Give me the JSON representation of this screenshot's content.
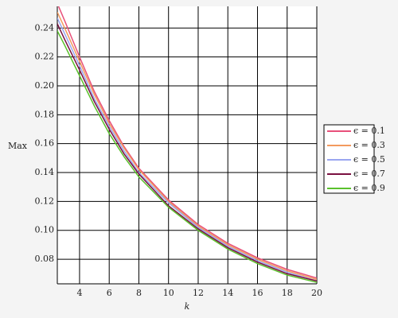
{
  "chart_data": {
    "type": "line",
    "x_label": "k",
    "y_label": "Max",
    "x": [
      2.5,
      3,
      4,
      5,
      6,
      7,
      8,
      10,
      12,
      14,
      16,
      18,
      20
    ],
    "series": [
      {
        "name": "ϵ = 0.1",
        "color": "#e8507a",
        "values": [
          0.257,
          0.245,
          0.22,
          0.196,
          0.176,
          0.158,
          0.143,
          0.121,
          0.104,
          0.091,
          0.081,
          0.073,
          0.067
        ]
      },
      {
        "name": "ϵ = 0.3",
        "color": "#f39a5e",
        "values": [
          0.251,
          0.24,
          0.217,
          0.194,
          0.174,
          0.157,
          0.142,
          0.12,
          0.103,
          0.09,
          0.08,
          0.072,
          0.066
        ]
      },
      {
        "name": "ϵ = 0.5",
        "color": "#9aa6f0",
        "values": [
          0.247,
          0.236,
          0.214,
          0.191,
          0.172,
          0.155,
          0.14,
          0.119,
          0.102,
          0.089,
          0.079,
          0.071,
          0.065
        ]
      },
      {
        "name": "ϵ = 0.7",
        "color": "#7a1040",
        "values": [
          0.243,
          0.232,
          0.211,
          0.189,
          0.17,
          0.153,
          0.139,
          0.117,
          0.101,
          0.088,
          0.078,
          0.07,
          0.065
        ]
      },
      {
        "name": "ϵ = 0.9",
        "color": "#5ac12c",
        "values": [
          0.238,
          0.228,
          0.207,
          0.186,
          0.167,
          0.151,
          0.137,
          0.116,
          0.1,
          0.087,
          0.077,
          0.069,
          0.064
        ]
      }
    ],
    "xlim": [
      2.5,
      20
    ],
    "ylim": [
      0.063,
      0.255
    ],
    "xticks": [
      4,
      6,
      8,
      10,
      12,
      14,
      16,
      18,
      20
    ],
    "yticks": [
      0.08,
      {
        "value": 0.1,
        "label": "0.10"
      },
      0.12,
      0.14,
      0.16,
      0.18,
      {
        "value": 0.2,
        "label": "0.20"
      },
      0.22,
      0.24
    ],
    "grid": true,
    "legend": "right"
  }
}
